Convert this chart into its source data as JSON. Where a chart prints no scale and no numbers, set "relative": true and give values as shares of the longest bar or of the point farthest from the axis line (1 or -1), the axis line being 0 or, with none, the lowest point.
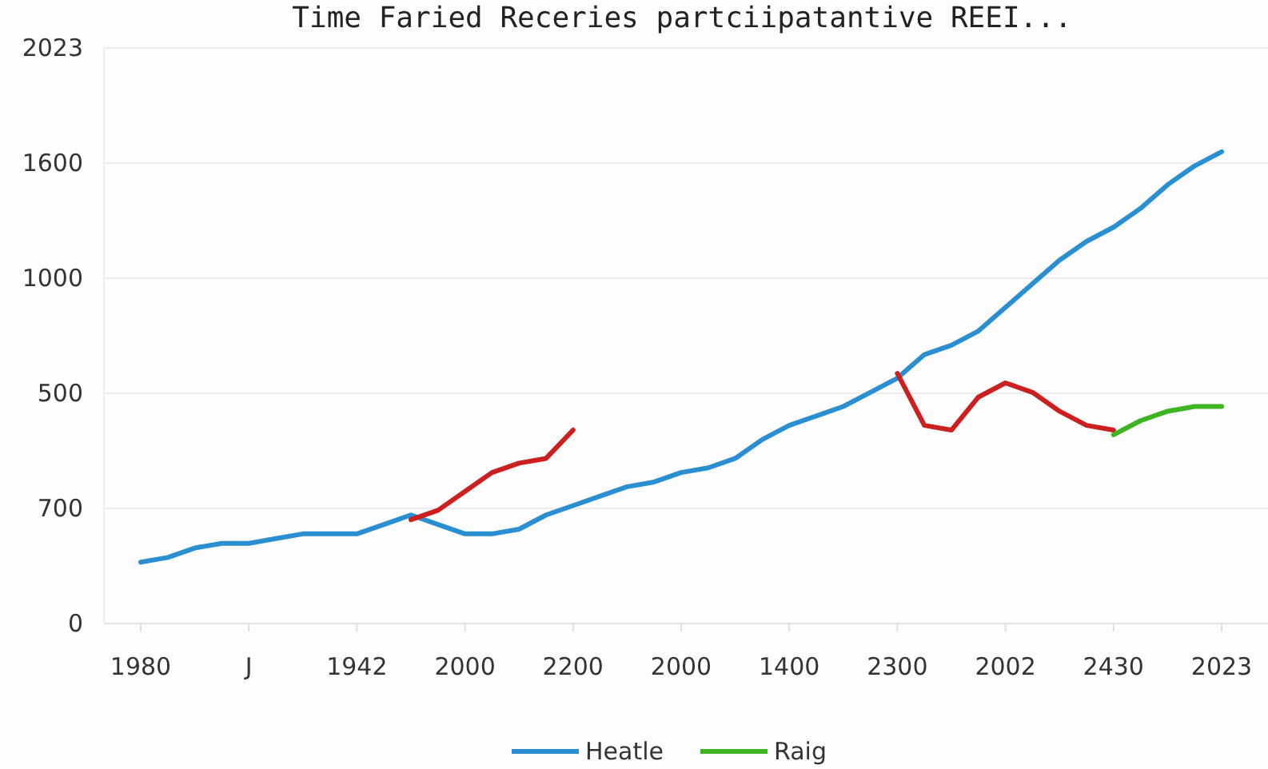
{
  "chart_data": {
    "type": "line",
    "title": "Time Faried Receries partciipatantive REEI...",
    "categories": [
      "1980",
      null,
      null,
      null,
      "J",
      null,
      null,
      null,
      "1942",
      null,
      null,
      null,
      "2000",
      null,
      null,
      null,
      "2200",
      null,
      null,
      null,
      "2000",
      null,
      null,
      null,
      "1400",
      null,
      null,
      null,
      "2300",
      null,
      null,
      null,
      "2002",
      null,
      null,
      null,
      "2430",
      null,
      null,
      null,
      "2023"
    ],
    "relative": true,
    "annotations": [
      "0",
      "700",
      "500",
      "1000",
      "1600",
      "2023"
    ],
    "grid": "y",
    "legend": "bottom",
    "line_style": "solid",
    "marker": "none",
    "series": [
      {
        "name": "Heatle",
        "color": "#2a8fd0",
        "values": [
          0.13,
          0.14,
          0.16,
          0.17,
          0.17,
          0.18,
          0.19,
          0.19,
          0.19,
          0.21,
          0.23,
          0.21,
          0.19,
          0.19,
          0.2,
          0.23,
          0.25,
          0.27,
          0.29,
          0.3,
          0.32,
          0.33,
          0.35,
          0.39,
          0.42,
          0.44,
          0.46,
          0.49,
          0.52,
          0.57,
          0.59,
          0.62,
          0.67,
          0.72,
          0.77,
          0.81,
          0.84,
          0.88,
          0.93,
          0.97,
          1
        ]
      },
      {
        "color": "#cc1f1f",
        "values": [
          null,
          null,
          null,
          null,
          null,
          null,
          null,
          null,
          null,
          null,
          0.22,
          0.24,
          0.28,
          0.32,
          0.34,
          0.35,
          0.41,
          null,
          null,
          null,
          null,
          null,
          null,
          null,
          null,
          null,
          null,
          null,
          0.53,
          0.42,
          0.41,
          0.48,
          0.51,
          0.49,
          0.45,
          0.42,
          0.41,
          null,
          null,
          null,
          null
        ]
      },
      {
        "name": "Raig",
        "color": "#3cb521",
        "values": [
          null,
          null,
          null,
          null,
          null,
          null,
          null,
          null,
          null,
          null,
          null,
          null,
          null,
          null,
          null,
          null,
          null,
          null,
          null,
          null,
          null,
          null,
          null,
          null,
          null,
          null,
          null,
          null,
          null,
          null,
          null,
          null,
          null,
          null,
          null,
          null,
          0.4,
          0.43,
          0.45,
          0.46,
          0.46
        ]
      }
    ]
  }
}
